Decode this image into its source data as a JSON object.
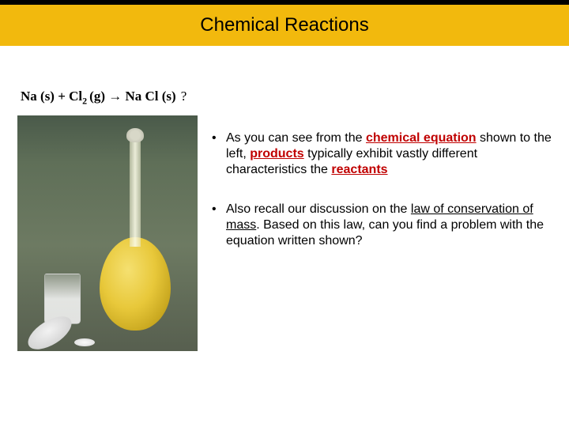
{
  "colors": {
    "title_bar_bg": "#f2b90d",
    "title_bar_border_top": "#000000",
    "page_bg": "#ffffff",
    "text": "#000000",
    "keyword_red": "#c00000"
  },
  "title": "Chemical Reactions",
  "equation": {
    "lhs1": "Na (s) + Cl",
    "sub": "2 ",
    "lhs2": "(g) → Na Cl (s)",
    "question_mark": "?"
  },
  "bullet1": {
    "pre": "As you can see from the ",
    "kw1": "chemical equation",
    "mid1": " shown to the left, ",
    "kw2": "products",
    "mid2": " typically exhibit vastly different characteristics the ",
    "kw3": "reactants"
  },
  "bullet2": {
    "pre": "Also recall our discussion on the ",
    "u1": "law of conservation of mass",
    "post": ".  Based on this law, can you find a problem with the equation written shown?"
  }
}
